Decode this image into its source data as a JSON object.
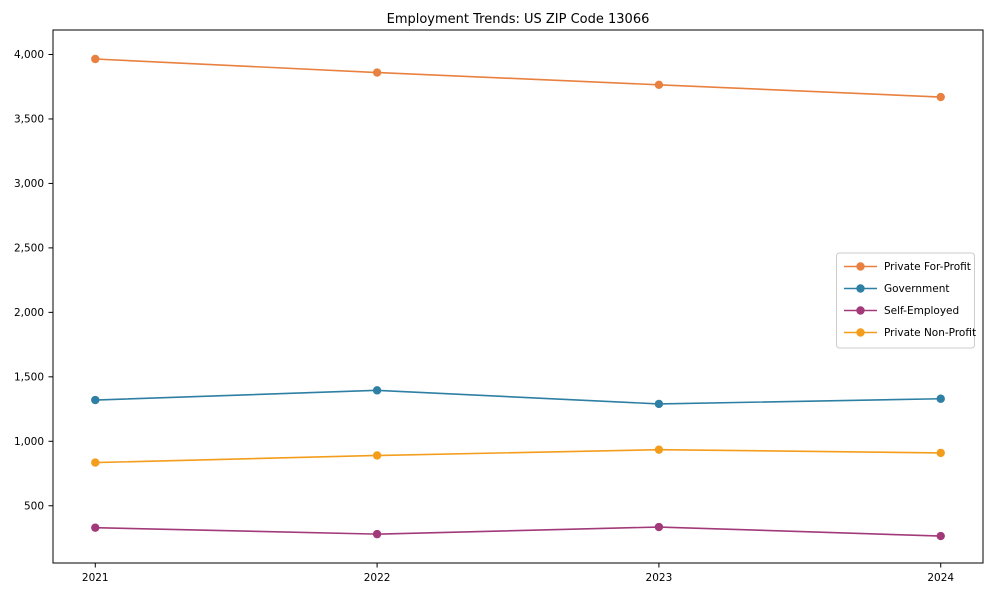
{
  "figure": {
    "title": "Employment Trends: US ZIP Code 13066",
    "background": "#ffffff"
  },
  "chart_data": {
    "type": "line",
    "title": "Employment Trends: US ZIP Code 13066",
    "xlabel": "",
    "ylabel": "",
    "x": [
      2021,
      2022,
      2023,
      2024
    ],
    "x_tick_labels": [
      "2021",
      "2022",
      "2023",
      "2024"
    ],
    "series": [
      {
        "name": "Private For-Profit",
        "color": "#e8813f",
        "marker": "circle",
        "values": [
          3965,
          3860,
          3765,
          3670
        ]
      },
      {
        "name": "Government",
        "color": "#2e7fa4",
        "marker": "circle",
        "values": [
          1320,
          1395,
          1290,
          1330
        ]
      },
      {
        "name": "Self-Employed",
        "color": "#a23a7a",
        "marker": "circle",
        "values": [
          330,
          280,
          335,
          265
        ]
      },
      {
        "name": "Private Non-Profit",
        "color": "#f49d1c",
        "marker": "circle",
        "values": [
          835,
          890,
          935,
          910
        ]
      }
    ],
    "xlim": [
      2020.85,
      2024.15
    ],
    "ylim": [
      56,
      4190
    ],
    "yticks": [
      500,
      1000,
      1500,
      2000,
      2500,
      3000,
      3500,
      4000
    ],
    "ytick_labels": [
      "500",
      "1,000",
      "1,500",
      "2,000",
      "2,500",
      "3,000",
      "3,500",
      "4,000"
    ],
    "grid": false,
    "legend": {
      "position": "right-middle",
      "entries": [
        "Private For-Profit",
        "Government",
        "Self-Employed",
        "Private Non-Profit"
      ]
    },
    "axis_color": "#000000",
    "legend_border_color": "#cccccc"
  }
}
